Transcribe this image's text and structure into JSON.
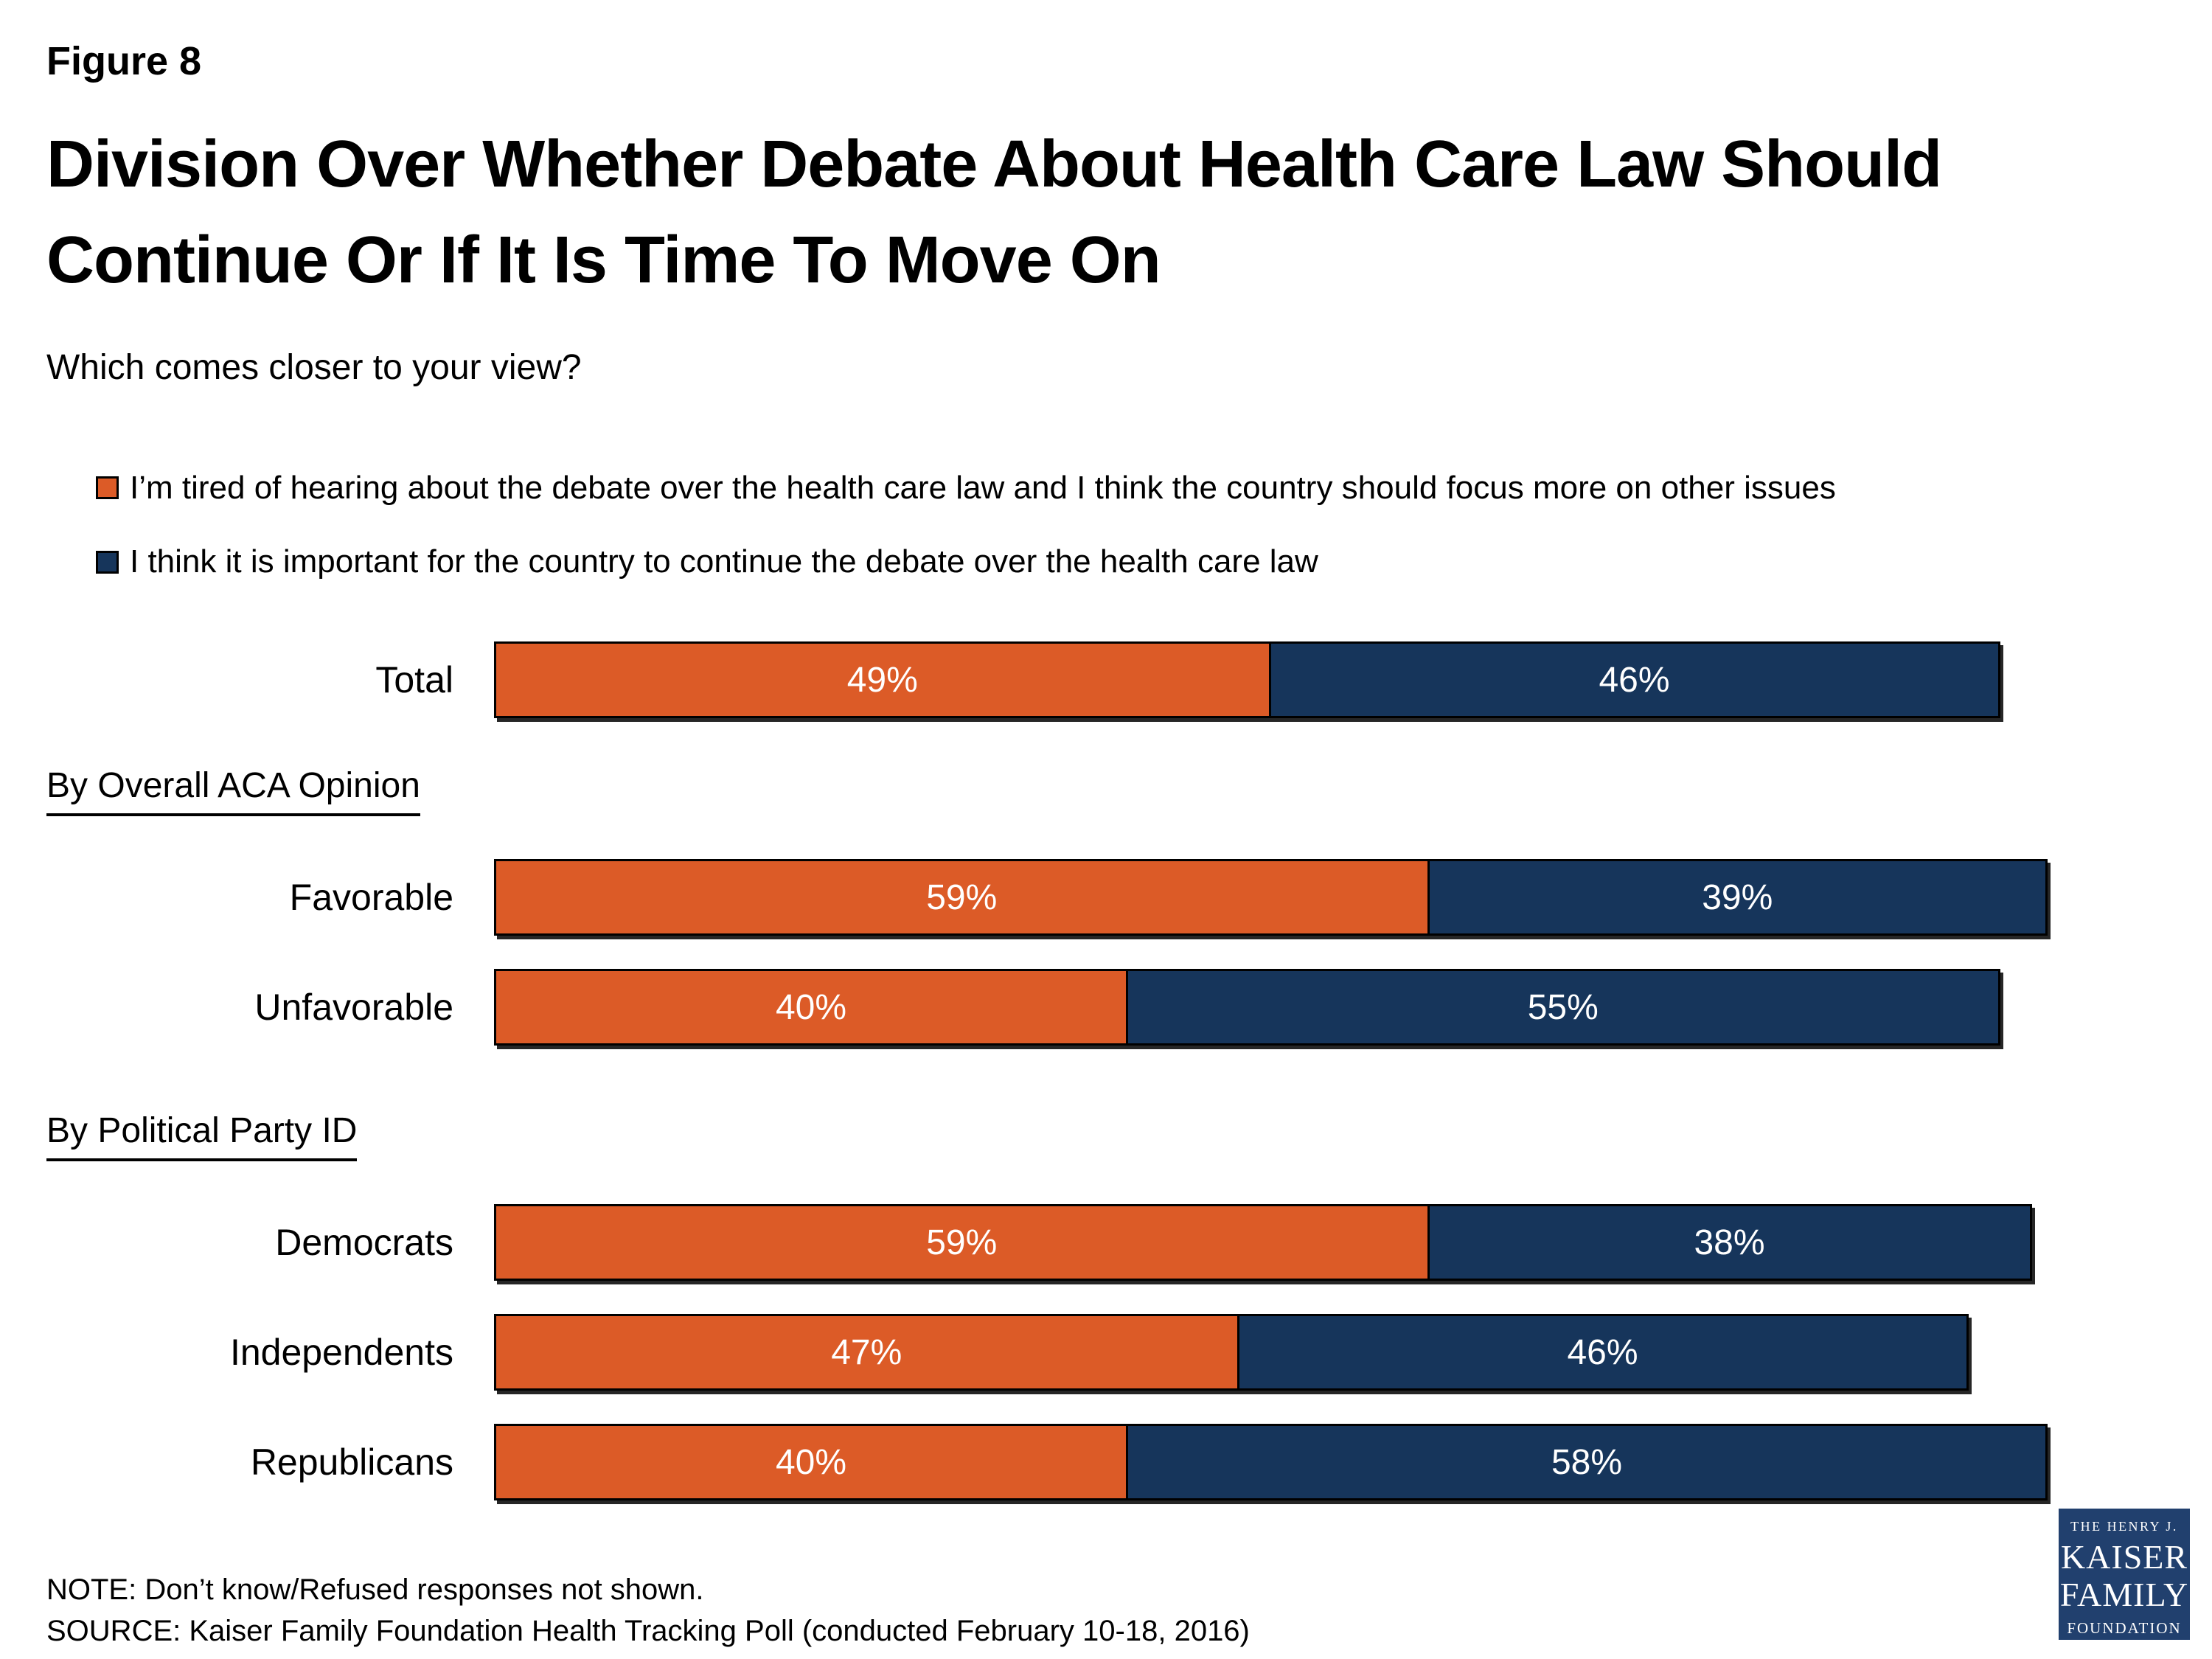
{
  "figure_label": "Figure 8",
  "title_lines": [
    "Division Over Whether Debate About Health Care Law Should",
    "Continue Or If It Is Time To Move On"
  ],
  "subtitle": "Which comes closer to your view?",
  "colors": {
    "tired_orange": "#DC5B27",
    "continue_navy": "#16355B",
    "logo_navy": "#21406E"
  },
  "legend": {
    "items": [
      {
        "label": "I’m tired of hearing about the debate over the health care law and I think the country should focus more on other issues",
        "color_key": "tired_orange"
      },
      {
        "label": "I think it is important for the country to continue the debate over the health care law",
        "color_key": "continue_navy"
      }
    ]
  },
  "chart_data": {
    "type": "bar",
    "orientation": "horizontal",
    "stacked": true,
    "unit": "percent",
    "x_max": 100,
    "legend_position": "top",
    "series_names": [
      "I’m tired of hearing about the debate over the health care law and I think the country should focus more on other issues",
      "I think it is important for the country to continue the debate over the health care law"
    ],
    "section_headers": {
      "aca": "By Overall ACA Opinion",
      "party": "By Political Party ID"
    },
    "rows": [
      {
        "label": "Total",
        "tired": {
          "value": 49,
          "display": "49%"
        },
        "cont": {
          "value": 46,
          "display": "46%"
        }
      },
      {
        "label": "Favorable",
        "tired": {
          "value": 59,
          "display": "59%"
        },
        "cont": {
          "value": 39,
          "display": "39%"
        }
      },
      {
        "label": "Unfavorable",
        "tired": {
          "value": 40,
          "display": "40%"
        },
        "cont": {
          "value": 55,
          "display": "55%"
        }
      },
      {
        "label": "Democrats",
        "tired": {
          "value": 59,
          "display": "59%"
        },
        "cont": {
          "value": 38,
          "display": "38%"
        }
      },
      {
        "label": "Independents",
        "tired": {
          "value": 47,
          "display": "47%"
        },
        "cont": {
          "value": 46,
          "display": "46%"
        }
      },
      {
        "label": "Republicans",
        "tired": {
          "value": 40,
          "display": "40%"
        },
        "cont": {
          "value": 58,
          "display": "58%"
        }
      }
    ]
  },
  "note": "NOTE: Don’t know/Refused responses not shown.",
  "source": "SOURCE: Kaiser Family Foundation Health Tracking Poll (conducted February 10-18, 2016)",
  "logo": {
    "line1": "THE HENRY J.",
    "line2": "KAISER",
    "line3": "FAMILY",
    "line4": "FOUNDATION"
  }
}
